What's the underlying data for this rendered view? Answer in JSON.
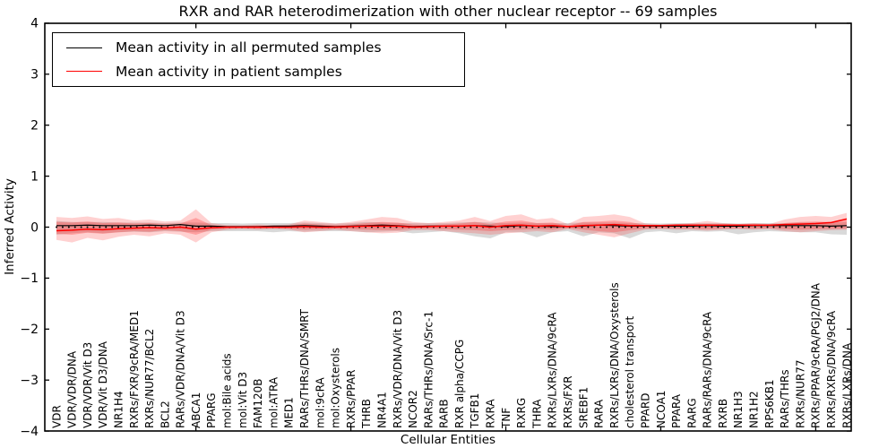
{
  "title": "RXR and RAR heterodimerization with other nuclear receptor -- 69 samples",
  "axes": {
    "ylabel": "Inferred Activity",
    "xlabel": "Cellular Entities"
  },
  "legend": {
    "entries": [
      {
        "label": "Mean activity in all permuted samples",
        "color": "#000000"
      },
      {
        "label": "Mean activity in patient samples",
        "color": "#ff0000"
      }
    ]
  },
  "chart_data": {
    "type": "line",
    "title": "RXR and RAR heterodimerization with other nuclear receptor -- 69 samples",
    "xlabel": "Cellular Entities",
    "ylabel": "Inferred Activity",
    "ylim": [
      -4,
      4
    ],
    "grid": false,
    "legend_position": "upper left",
    "yticks": [
      {
        "value": 4,
        "label": "4"
      },
      {
        "value": 3,
        "label": "3"
      },
      {
        "value": 2,
        "label": "2"
      },
      {
        "value": 1,
        "label": "1"
      },
      {
        "value": 0,
        "label": "0"
      },
      {
        "value": -1,
        "label": "−1"
      },
      {
        "value": -2,
        "label": "−2"
      },
      {
        "value": -3,
        "label": "−3"
      },
      {
        "value": -4,
        "label": "−4"
      }
    ],
    "top_tick_indices": [
      9,
      19,
      29,
      39,
      49
    ],
    "categories": [
      "VDR",
      "VDR/VDR/DNA",
      "VDR/VDR/Vit D3",
      "VDR/Vit D3/DNA",
      "NR1H4",
      "RXRs/FXR/9cRA/MED1",
      "RXRs/NUR77/BCL2",
      "BCL2",
      "RARs/VDR/DNA/Vit D3",
      "ABCA1",
      "PPARG",
      "mol:Bile acids",
      "mol:Vit D3",
      "FAM120B",
      "mol:ATRA",
      "MED1",
      "RARs/THRs/DNA/SMRT",
      "mol:9cRA",
      "mol:Oxysterols",
      "RXRs/PPAR",
      "THRB",
      "NR4A1",
      "RXRs/VDR/DNA/Vit D3",
      "NCOR2",
      "RARs/THRs/DNA/Src-1",
      "RARB",
      "RXR alpha/CCPG",
      "TGFB1",
      "RXRA",
      "TNF",
      "RXRG",
      "THRA",
      "RXRs/LXRs/DNA/9cRA",
      "RXRs/FXR",
      "SREBF1",
      "RARA",
      "RXRs/LXRs/DNA/Oxysterols",
      "cholesterol transport",
      "PPARD",
      "NCOA1",
      "PPARA",
      "RARG",
      "RARs/RARs/DNA/9cRA",
      "RXRB",
      "NR1H3",
      "NR1H2",
      "RPS6KB1",
      "RARs/THRs",
      "RXRs/NUR77",
      "RXRs/PPAR/9cRA/PGJ2/DNA",
      "RXRs/RXRs/DNA/9cRA",
      "RXRs/LXRs/DNA"
    ],
    "series": [
      {
        "name": "permuted-band",
        "role": "band",
        "color": "rgba(130,130,130,0.30)",
        "upper": [
          0.12,
          0.1,
          0.1,
          0.1,
          0.09,
          0.09,
          0.09,
          0.08,
          0.09,
          0.09,
          0.08,
          0.08,
          0.07,
          0.08,
          0.08,
          0.08,
          0.09,
          0.08,
          0.07,
          0.08,
          0.1,
          0.09,
          0.08,
          0.08,
          0.08,
          0.08,
          0.09,
          0.1,
          0.09,
          0.08,
          0.09,
          0.08,
          0.08,
          0.08,
          0.09,
          0.09,
          0.09,
          0.08,
          0.08,
          0.07,
          0.08,
          0.08,
          0.08,
          0.08,
          0.07,
          0.08,
          0.08,
          0.08,
          0.09,
          0.09,
          0.09,
          0.1
        ],
        "lower": [
          -0.15,
          -0.12,
          -0.1,
          -0.12,
          -0.1,
          -0.09,
          -0.1,
          -0.08,
          -0.09,
          -0.1,
          -0.08,
          -0.08,
          -0.08,
          -0.08,
          -0.1,
          -0.08,
          -0.09,
          -0.08,
          -0.08,
          -0.08,
          -0.1,
          -0.09,
          -0.08,
          -0.12,
          -0.1,
          -0.08,
          -0.12,
          -0.18,
          -0.22,
          -0.1,
          -0.1,
          -0.2,
          -0.1,
          -0.08,
          -0.18,
          -0.1,
          -0.12,
          -0.22,
          -0.1,
          -0.08,
          -0.12,
          -0.08,
          -0.09,
          -0.08,
          -0.14,
          -0.1,
          -0.08,
          -0.09,
          -0.1,
          -0.1,
          -0.14,
          -0.15
        ]
      },
      {
        "name": "patient-band-outer",
        "role": "band",
        "color": "rgba(255,45,45,0.22)",
        "upper": [
          0.2,
          0.18,
          0.21,
          0.16,
          0.18,
          0.13,
          0.15,
          0.11,
          0.13,
          0.35,
          0.08,
          0.04,
          0.04,
          0.05,
          0.04,
          0.05,
          0.13,
          0.1,
          0.07,
          0.1,
          0.15,
          0.2,
          0.18,
          0.1,
          0.08,
          0.1,
          0.13,
          0.2,
          0.12,
          0.22,
          0.25,
          0.15,
          0.18,
          0.06,
          0.2,
          0.22,
          0.25,
          0.2,
          0.07,
          0.05,
          0.06,
          0.08,
          0.12,
          0.08,
          0.06,
          0.08,
          0.06,
          0.15,
          0.2,
          0.22,
          0.2,
          0.28
        ],
        "lower": [
          -0.25,
          -0.3,
          -0.21,
          -0.26,
          -0.19,
          -0.15,
          -0.18,
          -0.12,
          -0.15,
          -0.3,
          -0.1,
          -0.05,
          -0.04,
          -0.05,
          -0.04,
          -0.05,
          -0.1,
          -0.08,
          -0.05,
          -0.08,
          -0.1,
          -0.12,
          -0.11,
          -0.06,
          -0.06,
          -0.08,
          -0.1,
          -0.12,
          -0.15,
          -0.12,
          -0.1,
          -0.08,
          -0.1,
          -0.04,
          -0.1,
          -0.15,
          -0.2,
          -0.12,
          -0.05,
          -0.04,
          -0.05,
          -0.05,
          -0.07,
          -0.05,
          -0.04,
          -0.05,
          -0.04,
          -0.08,
          -0.1,
          -0.08,
          -0.06,
          -0.05
        ]
      },
      {
        "name": "patient-band-inner",
        "role": "band",
        "color": "rgba(255,45,45,0.30)",
        "upper": [
          0.1,
          0.09,
          0.11,
          0.08,
          0.09,
          0.07,
          0.08,
          0.06,
          0.07,
          0.18,
          0.04,
          0.02,
          0.02,
          0.03,
          0.02,
          0.03,
          0.07,
          0.05,
          0.04,
          0.05,
          0.08,
          0.1,
          0.09,
          0.05,
          0.04,
          0.05,
          0.07,
          0.1,
          0.06,
          0.11,
          0.13,
          0.08,
          0.09,
          0.03,
          0.1,
          0.11,
          0.13,
          0.1,
          0.04,
          0.03,
          0.03,
          0.04,
          0.06,
          0.04,
          0.03,
          0.04,
          0.03,
          0.08,
          0.1,
          0.11,
          0.1,
          0.14
        ],
        "lower": [
          -0.13,
          -0.15,
          -0.11,
          -0.13,
          -0.1,
          -0.08,
          -0.09,
          -0.06,
          -0.08,
          -0.15,
          -0.05,
          -0.03,
          -0.02,
          -0.03,
          -0.02,
          -0.03,
          -0.05,
          -0.04,
          -0.03,
          -0.04,
          -0.05,
          -0.06,
          -0.06,
          -0.03,
          -0.03,
          -0.04,
          -0.05,
          -0.06,
          -0.08,
          -0.06,
          -0.05,
          -0.04,
          -0.05,
          -0.02,
          -0.05,
          -0.08,
          -0.1,
          -0.06,
          -0.03,
          -0.02,
          -0.03,
          -0.03,
          -0.04,
          -0.03,
          -0.02,
          -0.03,
          -0.02,
          -0.04,
          -0.05,
          -0.04,
          -0.03,
          -0.03
        ]
      },
      {
        "name": "Mean activity in all permuted samples",
        "role": "line",
        "color": "#000000",
        "width": 1.2,
        "values": [
          0.03,
          0.03,
          0.04,
          0.03,
          0.03,
          0.03,
          0.04,
          0.03,
          0.05,
          0.02,
          0.02,
          0.01,
          0.01,
          0.01,
          0.02,
          0.02,
          0.03,
          0.02,
          0.01,
          0.02,
          0.03,
          0.04,
          0.03,
          0.01,
          0.02,
          0.02,
          0.02,
          0.03,
          0.02,
          0.01,
          0.03,
          0.02,
          0.01,
          0.01,
          0.02,
          0.04,
          0.03,
          0.02,
          0.02,
          0.02,
          0.02,
          0.02,
          0.03,
          0.02,
          0.02,
          0.03,
          0.03,
          0.03,
          0.03,
          0.03,
          0.02,
          0.03
        ]
      },
      {
        "name": "zero-reference-dotted",
        "role": "dotted-line",
        "color": "#000000",
        "value": 0
      },
      {
        "name": "Mean activity in patient samples",
        "role": "line",
        "color": "#ff0000",
        "width": 1.5,
        "values": [
          -0.07,
          -0.06,
          -0.04,
          -0.05,
          -0.03,
          -0.02,
          -0.01,
          -0.02,
          0.0,
          -0.04,
          -0.01,
          0.0,
          0.0,
          0.0,
          0.0,
          0.0,
          0.01,
          0.0,
          0.0,
          0.01,
          0.02,
          0.02,
          0.02,
          0.0,
          0.01,
          0.02,
          0.02,
          0.03,
          0.0,
          0.03,
          0.04,
          0.02,
          0.03,
          0.01,
          0.03,
          0.04,
          0.05,
          0.03,
          0.03,
          0.03,
          0.04,
          0.04,
          0.04,
          0.04,
          0.04,
          0.04,
          0.04,
          0.05,
          0.06,
          0.07,
          0.09,
          0.16
        ]
      }
    ]
  }
}
